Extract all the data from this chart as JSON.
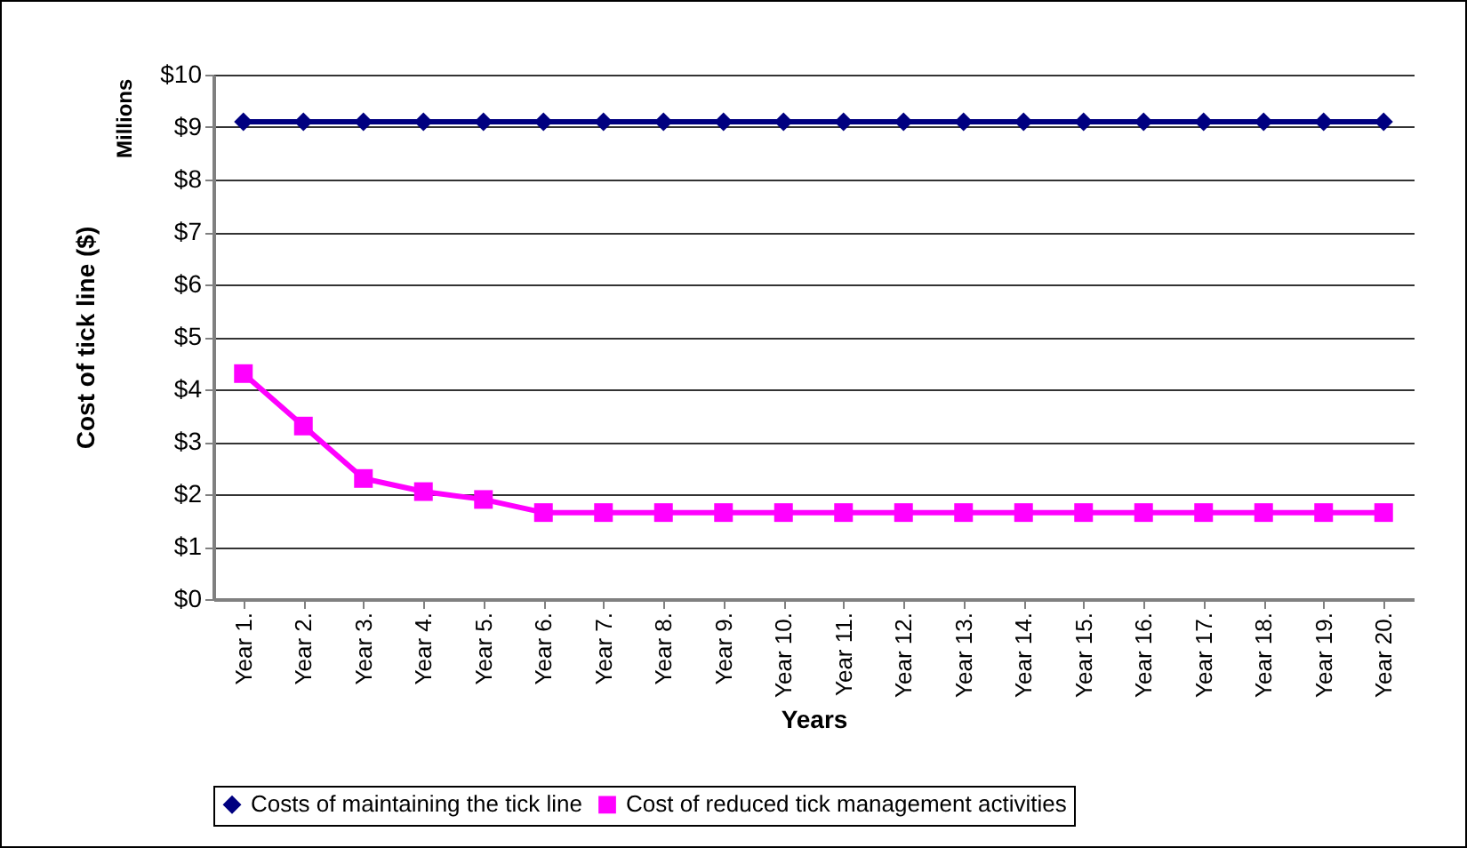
{
  "chart_data": {
    "type": "line",
    "xlabel": "Years",
    "ylabel": "Cost of tick line ($)",
    "annotations": [
      "Millions"
    ],
    "categories": [
      "Year 1.",
      "Year 2.",
      "Year 3.",
      "Year 4.",
      "Year 5.",
      "Year 6.",
      "Year 7.",
      "Year 8.",
      "Year 9.",
      "Year 10.",
      "Year 11.",
      "Year 12.",
      "Year 13.",
      "Year 14.",
      "Year 15.",
      "Year 16.",
      "Year 17.",
      "Year 18.",
      "Year 19.",
      "Year 20."
    ],
    "series": [
      {
        "name": "Costs of maintaining the tick line",
        "color": "#000080",
        "marker": "diamond",
        "values": [
          9.1,
          9.1,
          9.1,
          9.1,
          9.1,
          9.1,
          9.1,
          9.1,
          9.1,
          9.1,
          9.1,
          9.1,
          9.1,
          9.1,
          9.1,
          9.1,
          9.1,
          9.1,
          9.1,
          9.1
        ]
      },
      {
        "name": "Cost of reduced tick management activities",
        "color": "#ff00ff",
        "marker": "square",
        "values": [
          4.3,
          3.3,
          2.3,
          2.05,
          1.9,
          1.65,
          1.65,
          1.65,
          1.65,
          1.65,
          1.65,
          1.65,
          1.65,
          1.65,
          1.65,
          1.65,
          1.65,
          1.65,
          1.65,
          1.65
        ]
      }
    ],
    "ylim": [
      0,
      10
    ],
    "yticks": [
      {
        "value": 0,
        "label": "$0"
      },
      {
        "value": 1,
        "label": "$1"
      },
      {
        "value": 2,
        "label": "$2"
      },
      {
        "value": 3,
        "label": "$3"
      },
      {
        "value": 4,
        "label": "$4"
      },
      {
        "value": 5,
        "label": "$5"
      },
      {
        "value": 6,
        "label": "$6"
      },
      {
        "value": 7,
        "label": "$7"
      },
      {
        "value": 8,
        "label": "$8"
      },
      {
        "value": 9,
        "label": "$9"
      },
      {
        "value": 10,
        "label": "$10"
      }
    ],
    "grid": "y",
    "legend": "bottom",
    "line_style": "solid"
  }
}
